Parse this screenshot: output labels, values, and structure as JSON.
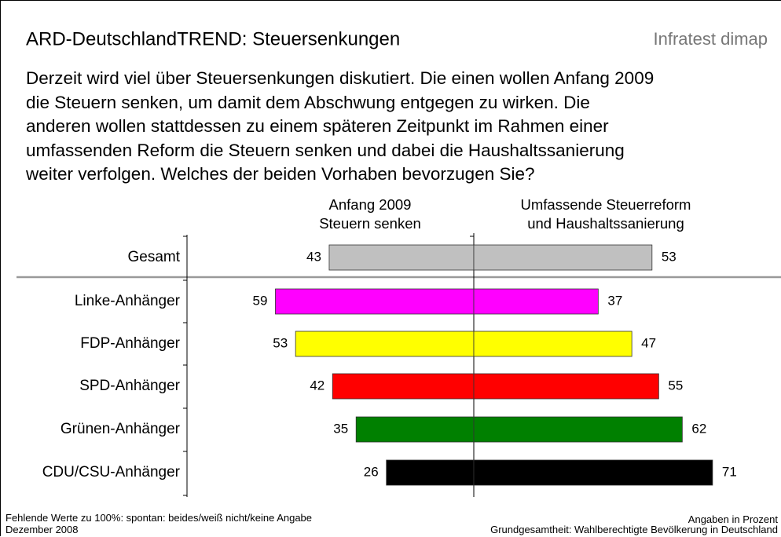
{
  "header": {
    "title": "ARD-DeutschlandTREND: Steuersenkungen",
    "source": "Infratest dimap",
    "question": "Derzeit wird viel über Steuersenkungen diskutiert. Die einen wollen Anfang 2009\ndie Steuern senken, um damit dem Abschwung entgegen zu wirken. Die\nanderen wollen stattdessen zu einem späteren Zeitpunkt im Rahmen einer\numfassenden Reform die Steuern senken und dabei die Haushaltssanierung\nweiter verfolgen. Welches der beiden Vorhaben bevorzugen Sie?"
  },
  "chart_data": {
    "type": "diverging_bar",
    "categories": [
      "Gesamt",
      "Linke-Anhänger",
      "FDP-Anhänger",
      "SPD-Anhänger",
      "Grünen-Anhänger",
      "CDU/CSU-Anhänger"
    ],
    "colors": [
      "#c0c0c0",
      "#ff00ff",
      "#ffff00",
      "#ff0000",
      "#008000",
      "#000000"
    ],
    "series": [
      {
        "name": "Anfang 2009\nSteuern senken",
        "values": [
          43,
          59,
          53,
          42,
          35,
          26
        ]
      },
      {
        "name": "Umfassende Steuerreform\nund Haushaltssanierung",
        "values": [
          53,
          37,
          47,
          55,
          62,
          71
        ]
      }
    ]
  },
  "footer": {
    "left": [
      "Fehlende Werte zu 100%: spontan: beides/weiß nicht/keine Angabe",
      "Dezember 2008"
    ],
    "right": [
      "Angaben in Prozent",
      "Grundgesamtheit: Wahlberechtigte Bevölkerung in Deutschland"
    ]
  }
}
